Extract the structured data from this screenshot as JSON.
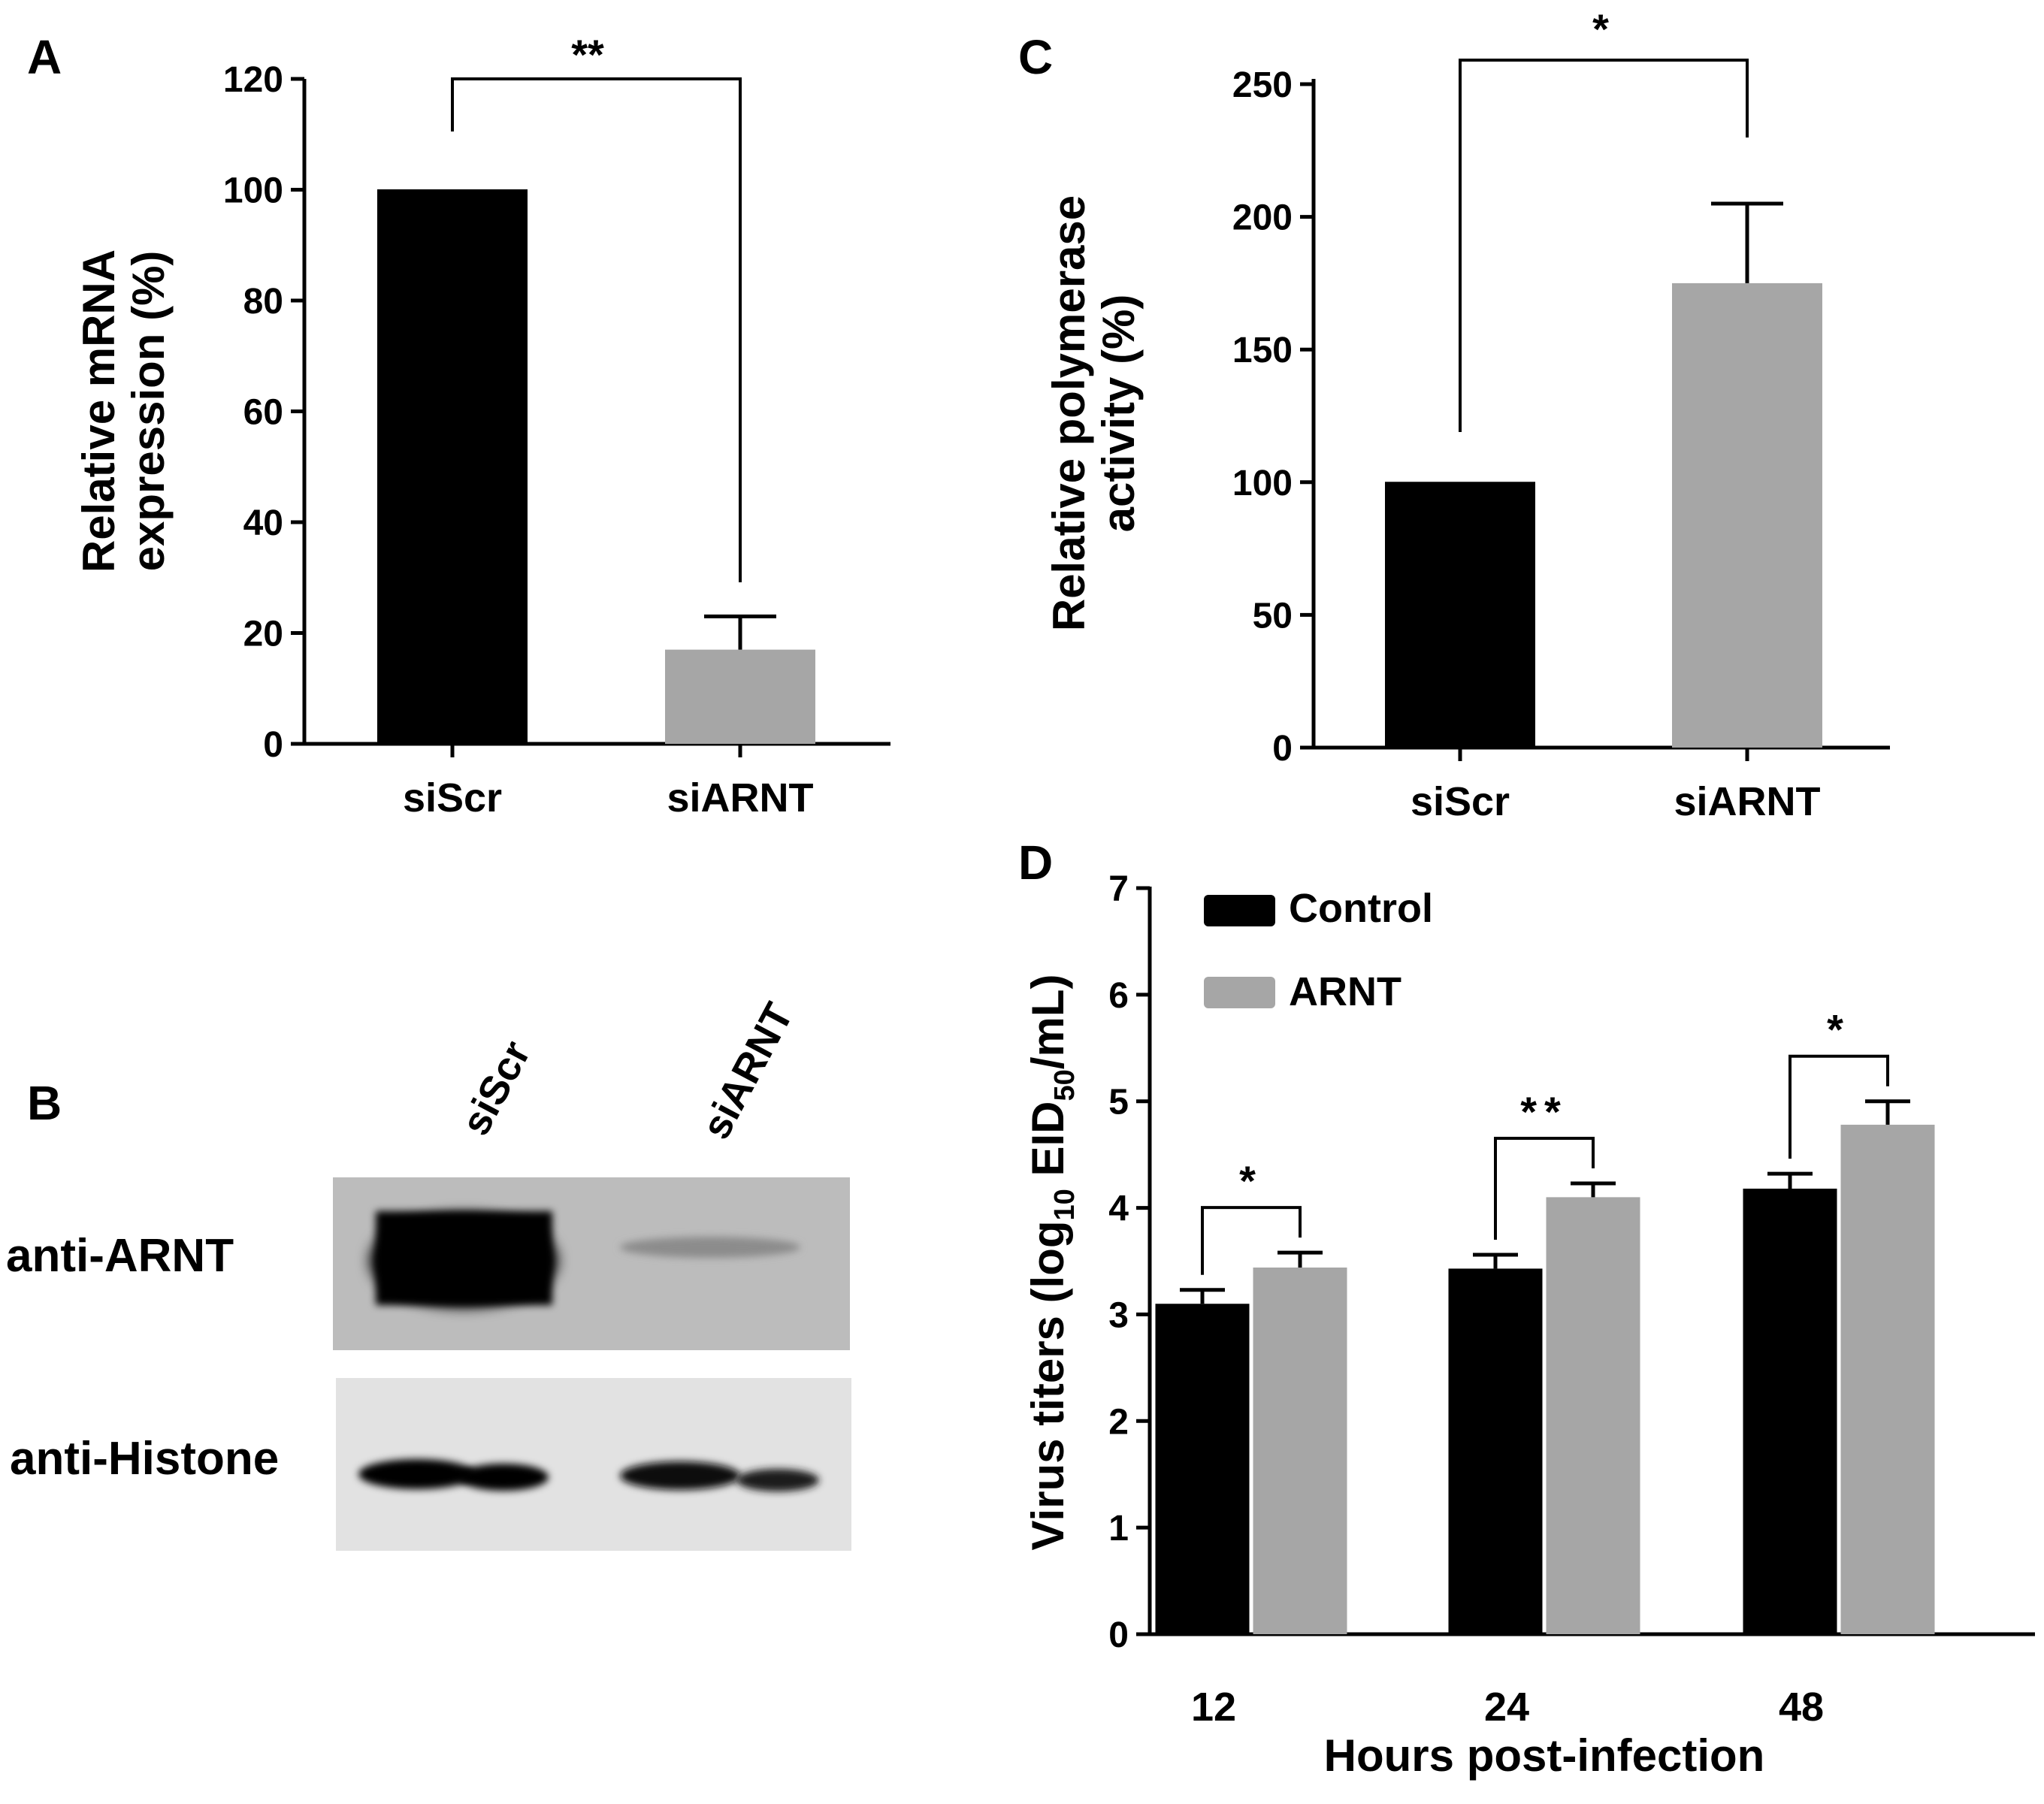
{
  "colors": {
    "control": "#000000",
    "treatment": "#a6a6a6",
    "axis": "#000000",
    "blot_bg": "#bcbcbc",
    "blot_bg2": "#e2e2e2"
  },
  "panels": {
    "a": "A",
    "b": "B",
    "c": "C",
    "d": "D"
  },
  "chart_data": [
    {
      "id": "A",
      "type": "bar",
      "categories": [
        "siScr",
        "siARNT"
      ],
      "values": [
        100,
        17
      ],
      "errors": [
        0,
        6
      ],
      "ylabel": [
        "Relative mRNA",
        "expression (%)"
      ],
      "ylim": [
        0,
        120
      ],
      "yticks": [
        "0",
        "20",
        "40",
        "60",
        "80",
        "100",
        "120"
      ],
      "significance": "**"
    },
    {
      "id": "C",
      "type": "bar",
      "categories": [
        "siScr",
        "siARNT"
      ],
      "values": [
        100,
        175
      ],
      "errors": [
        0,
        30
      ],
      "ylabel": [
        "Relative polymerase",
        "activity (%)"
      ],
      "ylim": [
        0,
        250
      ],
      "yticks": [
        "0",
        "50",
        "100",
        "150",
        "200",
        "250"
      ],
      "significance": "*"
    },
    {
      "id": "D",
      "type": "bar",
      "categories": [
        "12",
        "24",
        "48"
      ],
      "series": [
        {
          "name": "Control",
          "values": [
            3.1,
            3.43,
            4.18
          ],
          "errors": [
            0.13,
            0.13,
            0.14
          ]
        },
        {
          "name": "ARNT",
          "values": [
            3.44,
            4.1,
            4.78
          ],
          "errors": [
            0.14,
            0.13,
            0.22
          ]
        }
      ],
      "xlabel": "Hours post-infection",
      "ylabel": {
        "pre": "Virus titers (log",
        "sub1": "10",
        "mid": " EID",
        "sub2": "50",
        "post": "/mL)"
      },
      "ylim": [
        0,
        7
      ],
      "yticks": [
        "0",
        "1",
        "2",
        "3",
        "4",
        "5",
        "6",
        "7"
      ],
      "significance": [
        "*",
        "**",
        "*"
      ],
      "legend_position": "top-left"
    }
  ],
  "blot": {
    "lanes": [
      "siScr",
      "siARNT"
    ],
    "rows": [
      "anti-ARNT",
      "anti-Histone"
    ]
  }
}
